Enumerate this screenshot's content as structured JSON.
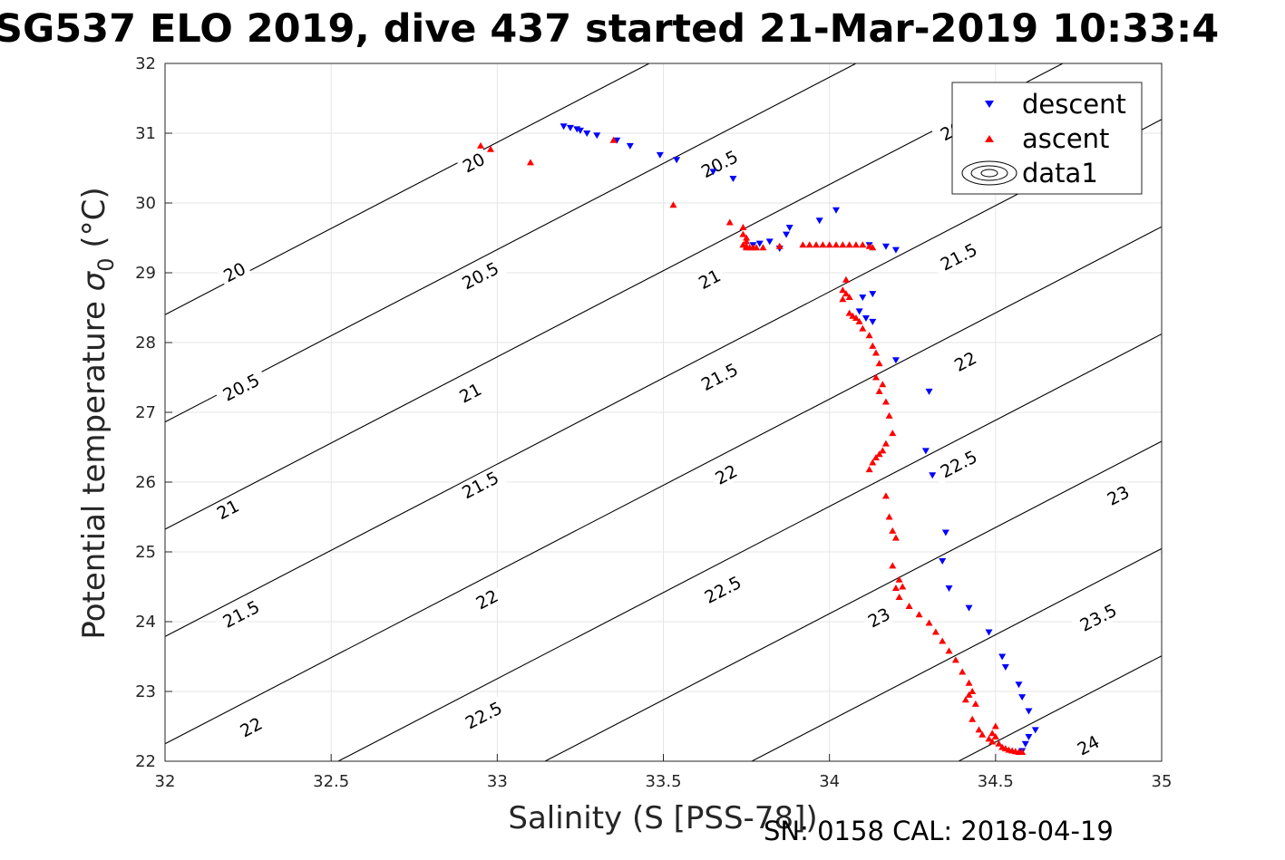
{
  "title": "SG537 ELO 2019, dive 437 started 21-Mar-2019 10:33:4",
  "footer": "SN: 0158  CAL: 2018-04-19",
  "colors": {
    "descent": "#0000ff",
    "ascent": "#ff0000",
    "contour": "#000000",
    "grid": "#e6e6e6",
    "axis": "#262626"
  },
  "chart_data": {
    "type": "scatter",
    "title": "SG537 ELO 2019, dive 437 started 21-Mar-2019 10:33:4",
    "xlabel": "Salinity (S [PSS-78])",
    "ylabel": "Potential temperature σ0 (°C)",
    "xlim": [
      32,
      35
    ],
    "ylim": [
      22,
      32
    ],
    "xticks": [
      "32",
      "32.5",
      "33",
      "33.5",
      "34",
      "34.5",
      "35"
    ],
    "yticks": [
      "22",
      "23",
      "24",
      "25",
      "26",
      "27",
      "28",
      "29",
      "30",
      "31",
      "32"
    ],
    "grid": true,
    "legend": {
      "placement": "top-right",
      "entries": [
        "descent",
        "ascent",
        "data1"
      ]
    },
    "contours": {
      "levels": [
        20,
        20.5,
        21,
        21.5,
        22,
        22.5,
        23,
        23.5,
        24
      ],
      "labels": [
        {
          "text": "20",
          "x": 32.21,
          "y": 29.0
        },
        {
          "text": "20",
          "x": 32.93,
          "y": 30.57
        },
        {
          "text": "20.5",
          "x": 32.23,
          "y": 27.35
        },
        {
          "text": "20.5",
          "x": 32.95,
          "y": 28.95
        },
        {
          "text": "20.5",
          "x": 33.67,
          "y": 30.55
        },
        {
          "text": "20.5",
          "x": 34.39,
          "y": 31.08
        },
        {
          "text": "21",
          "x": 32.19,
          "y": 25.6
        },
        {
          "text": "21",
          "x": 32.92,
          "y": 27.27
        },
        {
          "text": "21",
          "x": 33.64,
          "y": 28.9
        },
        {
          "text": "21.5",
          "x": 32.23,
          "y": 24.1
        },
        {
          "text": "21.5",
          "x": 32.95,
          "y": 25.95
        },
        {
          "text": "21.5",
          "x": 33.67,
          "y": 27.5
        },
        {
          "text": "21.5",
          "x": 34.39,
          "y": 29.22
        },
        {
          "text": "22",
          "x": 32.26,
          "y": 22.48
        },
        {
          "text": "22",
          "x": 32.97,
          "y": 24.31
        },
        {
          "text": "22",
          "x": 33.69,
          "y": 26.1
        },
        {
          "text": "22",
          "x": 34.41,
          "y": 27.72
        },
        {
          "text": "22.5",
          "x": 32.96,
          "y": 22.65
        },
        {
          "text": "22.5",
          "x": 33.68,
          "y": 24.45
        },
        {
          "text": "22.5",
          "x": 34.39,
          "y": 26.25
        },
        {
          "text": "23",
          "x": 34.15,
          "y": 24.05
        },
        {
          "text": "23",
          "x": 34.87,
          "y": 25.8
        },
        {
          "text": "23.5",
          "x": 34.81,
          "y": 24.05
        },
        {
          "text": "24",
          "x": 34.78,
          "y": 22.22
        }
      ]
    },
    "series": [
      {
        "name": "descent",
        "marker": "triangle-down",
        "color": "#0000ff",
        "x": [
          33.2,
          33.22,
          33.24,
          33.25,
          33.27,
          33.3,
          33.36,
          33.4,
          33.49,
          33.54,
          33.65,
          33.71,
          33.77,
          33.79,
          33.82,
          33.85,
          33.87,
          33.88,
          33.97,
          34.02,
          34.12,
          34.17,
          34.2,
          34.1,
          34.13,
          34.09,
          34.11,
          34.13,
          34.2,
          34.3,
          34.29,
          34.31,
          34.35,
          34.34,
          34.36,
          34.42,
          34.48,
          34.52,
          34.53,
          34.57,
          34.58,
          34.6,
          34.62,
          34.6,
          34.59,
          34.58
        ],
        "y": [
          31.1,
          31.08,
          31.06,
          31.04,
          31.0,
          30.97,
          30.9,
          30.82,
          30.69,
          30.62,
          30.45,
          30.35,
          29.4,
          29.42,
          29.45,
          29.35,
          29.55,
          29.65,
          29.75,
          29.9,
          29.4,
          29.38,
          29.33,
          28.65,
          28.7,
          28.45,
          28.35,
          28.3,
          27.75,
          27.3,
          26.45,
          26.1,
          25.28,
          24.87,
          24.48,
          24.2,
          23.85,
          23.5,
          23.35,
          23.1,
          22.92,
          22.72,
          22.45,
          22.35,
          22.25,
          22.15
        ]
      },
      {
        "name": "ascent",
        "marker": "triangle-up",
        "color": "#ff0000",
        "x": [
          32.95,
          32.98,
          33.1,
          33.35,
          33.53,
          33.7,
          33.74,
          33.74,
          33.75,
          33.75,
          33.74,
          33.75,
          33.75,
          33.76,
          33.77,
          33.78,
          33.8,
          33.85,
          33.92,
          33.94,
          33.96,
          33.98,
          34.0,
          34.02,
          34.04,
          34.06,
          34.08,
          34.1,
          34.12,
          34.13,
          34.04,
          34.05,
          34.06,
          34.04,
          34.05,
          34.06,
          34.07,
          34.08,
          34.09,
          34.1,
          34.12,
          34.13,
          34.14,
          34.15,
          34.14,
          34.16,
          34.15,
          34.17,
          34.18,
          34.19,
          34.17,
          34.16,
          34.15,
          34.14,
          34.13,
          34.12,
          34.17,
          34.18,
          34.19,
          34.2,
          34.19,
          34.21,
          34.22,
          34.2,
          34.21,
          34.24,
          34.27,
          34.3,
          34.32,
          34.34,
          34.36,
          34.38,
          34.4,
          34.42,
          34.43,
          34.44,
          34.42,
          34.41,
          34.43,
          34.45,
          34.46,
          34.48,
          34.49,
          34.49,
          34.5,
          34.5,
          34.51,
          34.52,
          34.53,
          34.54,
          34.55,
          34.56,
          34.57,
          34.58
        ],
        "y": [
          30.82,
          30.77,
          30.58,
          30.9,
          29.97,
          29.72,
          29.65,
          29.55,
          29.5,
          29.45,
          29.4,
          29.38,
          29.36,
          29.36,
          29.36,
          29.36,
          29.36,
          29.38,
          29.4,
          29.4,
          29.4,
          29.4,
          29.4,
          29.4,
          29.4,
          29.4,
          29.4,
          29.4,
          29.38,
          29.36,
          28.75,
          28.7,
          28.65,
          28.62,
          28.9,
          28.42,
          28.38,
          28.35,
          28.3,
          28.2,
          28.1,
          27.95,
          27.85,
          27.7,
          27.5,
          27.4,
          27.3,
          27.15,
          26.95,
          26.7,
          26.55,
          26.45,
          26.4,
          26.35,
          26.28,
          26.18,
          25.8,
          25.5,
          25.3,
          25.2,
          24.8,
          24.6,
          24.5,
          24.48,
          24.35,
          24.22,
          24.1,
          23.98,
          23.85,
          23.72,
          23.58,
          23.45,
          23.28,
          23.12,
          23.0,
          22.82,
          22.95,
          22.88,
          22.6,
          22.45,
          22.38,
          22.32,
          22.28,
          22.4,
          22.5,
          22.35,
          22.25,
          22.2,
          22.18,
          22.16,
          22.15,
          22.14,
          22.13,
          22.13
        ]
      }
    ]
  }
}
